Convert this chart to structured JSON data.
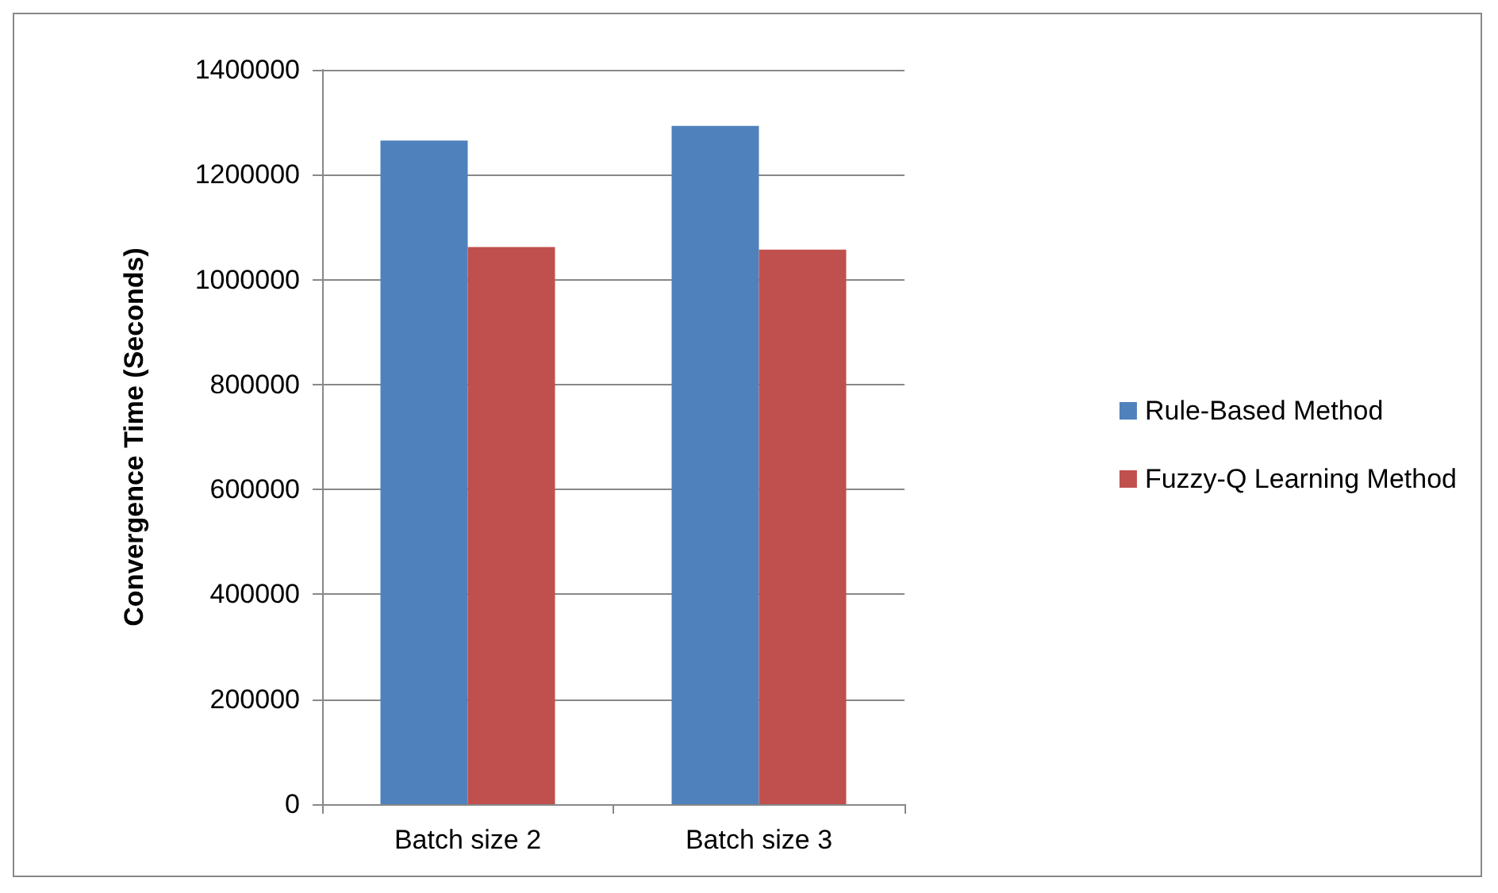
{
  "chart_data": {
    "type": "bar",
    "ylabel": "Convergence Time (Seconds)",
    "categories": [
      "Batch size 2",
      "Batch size 3"
    ],
    "series": [
      {
        "name": "Rule-Based Method",
        "color": "#4f81bd",
        "values": [
          1265000,
          1293000
        ]
      },
      {
        "name": "Fuzzy-Q Learning Method",
        "color": "#c0504d",
        "values": [
          1062000,
          1057000
        ]
      }
    ],
    "ylim": [
      0,
      1400000
    ],
    "yticks": [
      0,
      200000,
      400000,
      600000,
      800000,
      1000000,
      1200000,
      1400000
    ],
    "grid": "y",
    "legend": "right"
  }
}
